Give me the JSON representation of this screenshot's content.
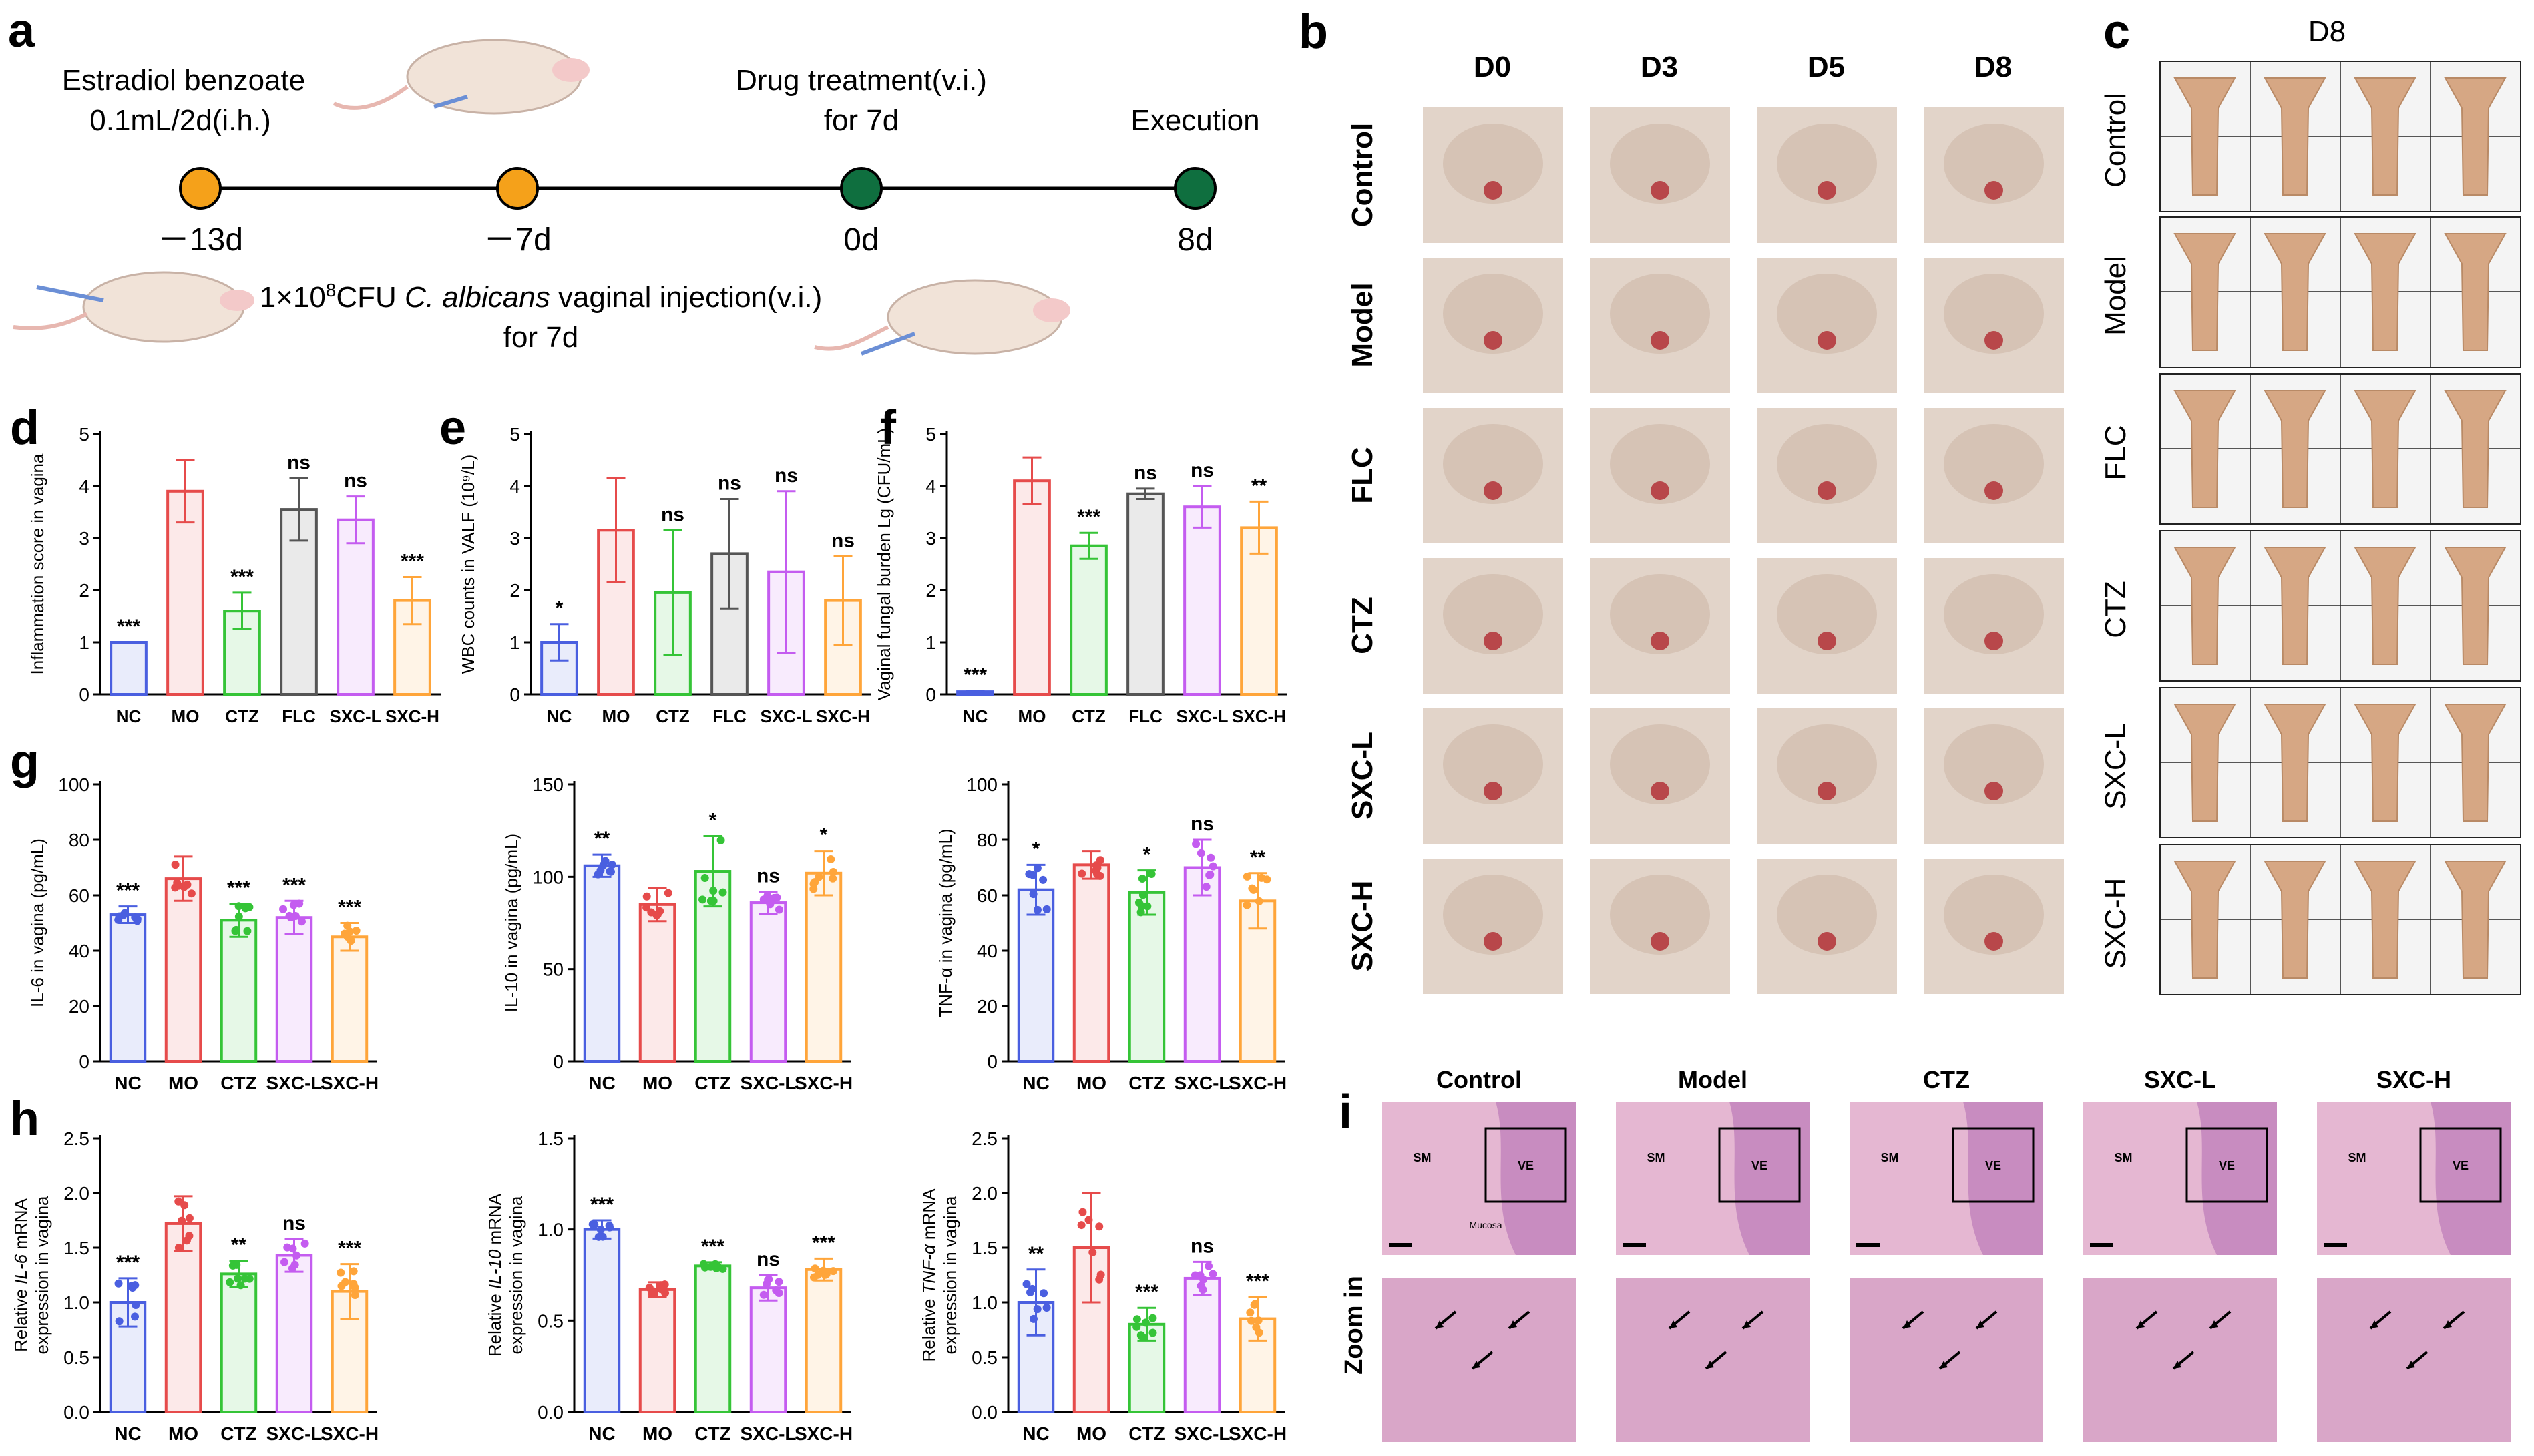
{
  "colors": {
    "NC": "#4a5fe0",
    "MO": "#e64b4b",
    "CTZ": "#35c437",
    "FLC": "#555555",
    "SXC-L": "#c45cf0",
    "SXC-H": "#ffa53a"
  },
  "panels": {
    "a": {
      "letter": "a",
      "label_estradiol_1": "Estradiol benzoate",
      "label_estradiol_2": "0.1mL/2d(i.h.)",
      "label_drug_1": "Drug treatment(v.i.)",
      "label_drug_2": "for 7d",
      "label_execution": "Execution",
      "label_injection_1_pre": "1×10",
      "label_injection_1_sup": "8",
      "label_injection_1_mid": "CFU ",
      "label_injection_1_italic": "C. albicans",
      "label_injection_1_post": " vaginal injection(v.i.)",
      "label_injection_2": "for 7d",
      "timepoints": [
        "－13d",
        "－7d",
        "0d",
        "8d"
      ]
    },
    "b": {
      "letter": "b",
      "days": [
        "D0",
        "D3",
        "D5",
        "D8"
      ],
      "groups": [
        "Control",
        "Model",
        "FLC",
        "CTZ",
        "SXC-L",
        "SXC-H"
      ]
    },
    "c": {
      "letter": "c",
      "title": "D8",
      "groups": [
        "Control",
        "Model",
        "FLC",
        "CTZ",
        "SXC-L",
        "SXC-H"
      ]
    },
    "i": {
      "letter": "i",
      "groups": [
        "Control",
        "Model",
        "CTZ",
        "SXC-L",
        "SXC-H"
      ],
      "row_label": "Zoom in",
      "region_sm": "SM",
      "region_ve": "VE",
      "region_mucosa": "Mucosa"
    }
  },
  "chart_data": [
    {
      "id": "d",
      "letter": "d",
      "type": "bar",
      "ylabel": "Inflammation score in vagina",
      "ylim": [
        0,
        5
      ],
      "yticks": [
        "0",
        "1",
        "2",
        "3",
        "4",
        "5"
      ],
      "categories": [
        "NC",
        "MO",
        "CTZ",
        "FLC",
        "SXC-L",
        "SXC-H"
      ],
      "values": [
        1.0,
        3.9,
        1.6,
        3.55,
        3.35,
        1.8
      ],
      "errors": [
        0,
        0.6,
        0.35,
        0.6,
        0.45,
        0.45
      ],
      "significance": [
        "***",
        "",
        "***",
        "ns",
        "ns",
        "***"
      ]
    },
    {
      "id": "e",
      "letter": "e",
      "type": "bar",
      "ylabel": "WBC counts in VALF (10⁹/L)",
      "ylim": [
        0,
        5
      ],
      "yticks": [
        "0",
        "1",
        "2",
        "3",
        "4",
        "5"
      ],
      "categories": [
        "NC",
        "MO",
        "CTZ",
        "FLC",
        "SXC-L",
        "SXC-H"
      ],
      "values": [
        1.0,
        3.15,
        1.95,
        2.7,
        2.35,
        1.8
      ],
      "errors": [
        0.35,
        1.0,
        1.2,
        1.05,
        1.55,
        0.85
      ],
      "significance": [
        "*",
        "",
        "ns",
        "ns",
        "ns",
        "ns"
      ]
    },
    {
      "id": "f",
      "letter": "f",
      "type": "bar",
      "ylabel": "Vaginal fungal burden Lg (CFU/mL)",
      "ylim": [
        0,
        5
      ],
      "yticks": [
        "0",
        "1",
        "2",
        "3",
        "4",
        "5"
      ],
      "categories": [
        "NC",
        "MO",
        "CTZ",
        "FLC",
        "SXC-L",
        "SXC-H"
      ],
      "values": [
        0.05,
        4.1,
        2.85,
        3.85,
        3.6,
        3.2
      ],
      "errors": [
        0.02,
        0.45,
        0.25,
        0.1,
        0.4,
        0.5
      ],
      "significance": [
        "***",
        "",
        "***",
        "ns",
        "ns",
        "**"
      ]
    },
    {
      "id": "g1",
      "letter": "g",
      "type": "bar",
      "ylabel": "IL-6 in vagina (pg/mL)",
      "ylim": [
        0,
        100
      ],
      "yticks": [
        "0",
        "20",
        "40",
        "60",
        "80",
        "100"
      ],
      "categories": [
        "NC",
        "MO",
        "CTZ",
        "SXC-L",
        "SXC-H"
      ],
      "values": [
        53,
        66,
        51,
        52,
        45
      ],
      "errors": [
        3,
        8,
        6,
        6,
        5
      ],
      "significance": [
        "***",
        "",
        "***",
        "***",
        "***"
      ]
    },
    {
      "id": "g2",
      "letter": "",
      "type": "bar",
      "ylabel": "IL-10 in vagina (pg/mL)",
      "ylim": [
        0,
        150
      ],
      "yticks": [
        "0",
        "50",
        "100",
        "150"
      ],
      "categories": [
        "NC",
        "MO",
        "CTZ",
        "SXC-L",
        "SXC-H"
      ],
      "values": [
        106,
        85,
        103,
        86,
        102
      ],
      "errors": [
        6,
        9,
        19,
        6,
        12
      ],
      "significance": [
        "**",
        "",
        "*",
        "ns",
        "*"
      ]
    },
    {
      "id": "g3",
      "letter": "",
      "type": "bar",
      "ylabel": "TNF-α in vagina (pg/mL)",
      "ylim": [
        0,
        100
      ],
      "yticks": [
        "0",
        "20",
        "40",
        "60",
        "80",
        "100"
      ],
      "categories": [
        "NC",
        "MO",
        "CTZ",
        "SXC-L",
        "SXC-H"
      ],
      "values": [
        62,
        71,
        61,
        70,
        58
      ],
      "errors": [
        9,
        5,
        8,
        10,
        10
      ],
      "significance": [
        "*",
        "",
        "*",
        "ns",
        "**"
      ]
    },
    {
      "id": "h1",
      "letter": "h",
      "type": "bar",
      "ylabel_pre": "Relative ",
      "ylabel_italic": "IL-6",
      "ylabel_post": " mRNA",
      "ylabel2": "expression in vagina",
      "ylim": [
        0,
        2.5
      ],
      "yticks": [
        "0.0",
        "0.5",
        "1.0",
        "1.5",
        "2.0",
        "2.5"
      ],
      "categories": [
        "NC",
        "MO",
        "CTZ",
        "SXC-L",
        "SXC-H"
      ],
      "values": [
        1.0,
        1.72,
        1.26,
        1.43,
        1.1
      ],
      "errors": [
        0.22,
        0.25,
        0.12,
        0.15,
        0.25
      ],
      "significance": [
        "***",
        "",
        "**",
        "ns",
        "***"
      ]
    },
    {
      "id": "h2",
      "letter": "",
      "type": "bar",
      "ylabel_pre": "Relative ",
      "ylabel_italic": "IL-10",
      "ylabel_post": " mRNA",
      "ylabel2": "expression in vagina",
      "ylim": [
        0,
        1.5
      ],
      "yticks": [
        "0.0",
        "0.5",
        "1.0",
        "1.5"
      ],
      "categories": [
        "NC",
        "MO",
        "CTZ",
        "SXC-L",
        "SXC-H"
      ],
      "values": [
        1.0,
        0.67,
        0.8,
        0.68,
        0.78
      ],
      "errors": [
        0.05,
        0.04,
        0.02,
        0.07,
        0.06
      ],
      "significance": [
        "***",
        "",
        "***",
        "ns",
        "***"
      ]
    },
    {
      "id": "h3",
      "letter": "",
      "type": "bar",
      "ylabel_pre": "Relative ",
      "ylabel_italic": "TNF-α",
      "ylabel_post": " mRNA",
      "ylabel2": "expression in vagina",
      "ylim": [
        0,
        2.5
      ],
      "yticks": [
        "0.0",
        "0.5",
        "1.0",
        "1.5",
        "2.0",
        "2.5"
      ],
      "categories": [
        "NC",
        "MO",
        "CTZ",
        "SXC-L",
        "SXC-H"
      ],
      "values": [
        1.0,
        1.5,
        0.8,
        1.22,
        0.85
      ],
      "errors": [
        0.3,
        0.5,
        0.15,
        0.15,
        0.2
      ],
      "significance": [
        "**",
        "",
        "***",
        "ns",
        "***"
      ]
    }
  ]
}
